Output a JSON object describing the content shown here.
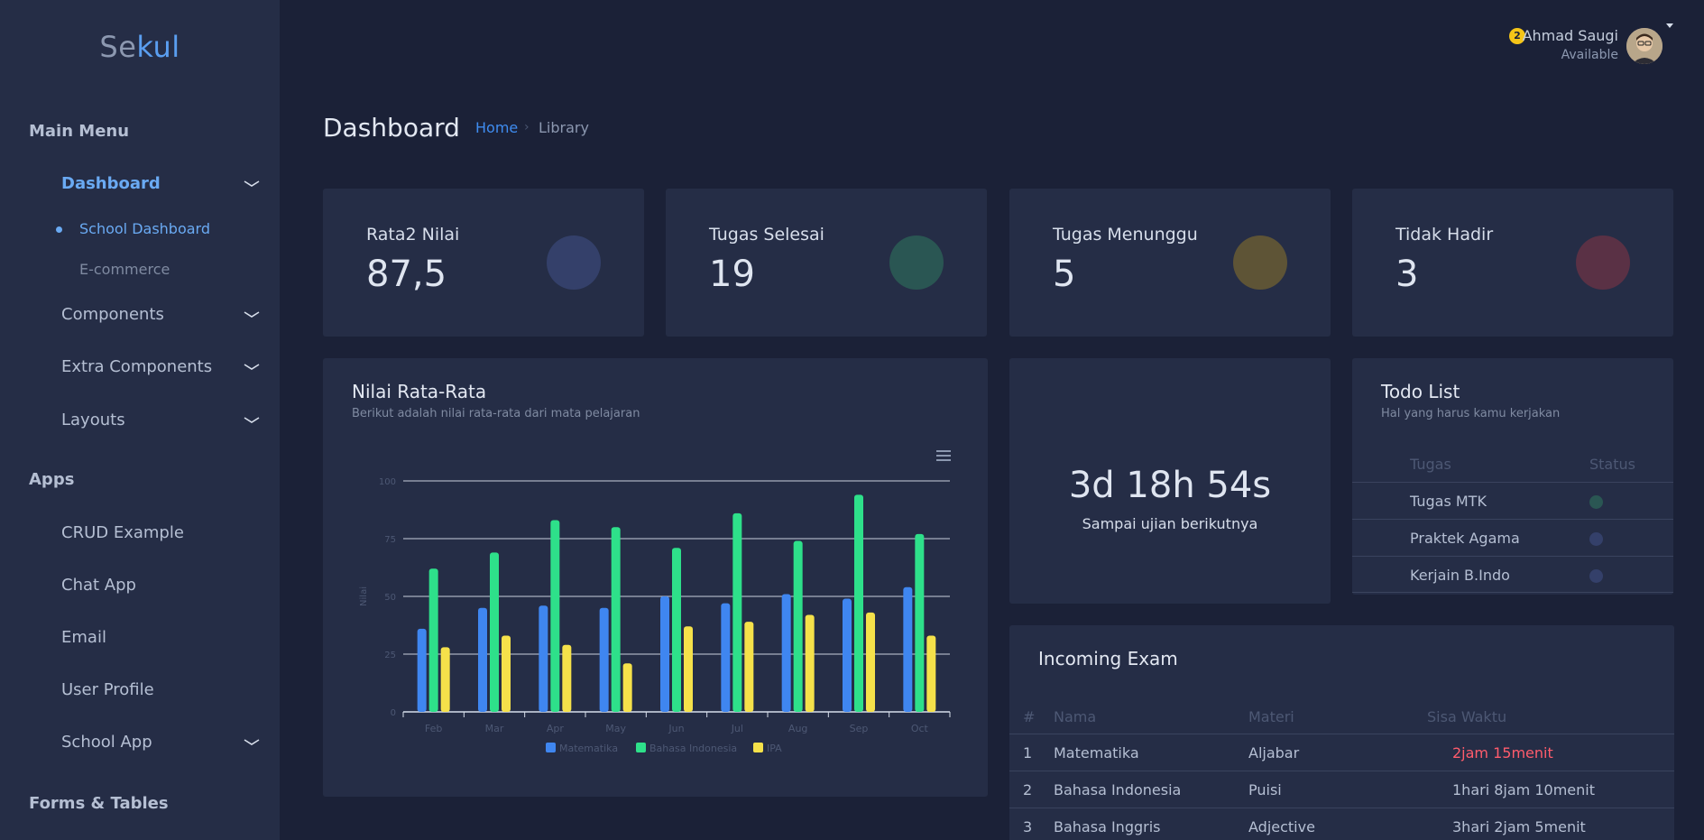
{
  "brand": {
    "part1": "Se",
    "part2": "kul"
  },
  "sidebar": {
    "main_menu": "Main Menu",
    "dashboard": "Dashboard",
    "school_dashboard": "School Dashboard",
    "ecommerce": "E-commerce",
    "components": "Components",
    "extra_components": "Extra Components",
    "layouts": "Layouts",
    "apps": "Apps",
    "crud": "CRUD Example",
    "chat": "Chat App",
    "email": "Email",
    "user_profile": "User Profile",
    "school_app": "School App",
    "forms_tables": "Forms & Tables"
  },
  "header": {
    "notification_count": "2",
    "user_name": "Ahmad Saugi",
    "user_status": "Available"
  },
  "page": {
    "title": "Dashboard",
    "breadcrumb_home": "Home",
    "breadcrumb_sep": "›",
    "breadcrumb_current": "Library"
  },
  "stats": [
    {
      "label": "Rata2 Nilai",
      "value": "87,5",
      "color": "#34406a"
    },
    {
      "label": "Tugas Selesai",
      "value": "19",
      "color": "#2a5653"
    },
    {
      "label": "Tugas Menunggu",
      "value": "5",
      "color": "#5e5436"
    },
    {
      "label": "Tidak Hadir",
      "value": "3",
      "color": "#5a3145"
    }
  ],
  "chart_card": {
    "title": "Nilai Rata-Rata",
    "subtitle": "Berikut adalah nilai rata-rata dari mata pelajaran"
  },
  "chart_data": {
    "type": "bar",
    "categories": [
      "Feb",
      "Mar",
      "Apr",
      "May",
      "Jun",
      "Jul",
      "Aug",
      "Sep",
      "Oct"
    ],
    "series": [
      {
        "name": "Matematika",
        "color": "#3f86f0",
        "values": [
          36,
          45,
          46,
          45,
          50,
          47,
          51,
          49,
          54
        ]
      },
      {
        "name": "Bahasa Indonesia",
        "color": "#2ee08a",
        "values": [
          62,
          69,
          83,
          80,
          71,
          86,
          74,
          94,
          77
        ]
      },
      {
        "name": "IPA",
        "color": "#f5e14a",
        "values": [
          28,
          33,
          29,
          21,
          37,
          39,
          42,
          43,
          33
        ]
      }
    ],
    "ylabel": "Nilai",
    "ylim": [
      0,
      100
    ],
    "yticks": [
      0,
      25,
      50,
      75,
      100
    ],
    "grid": true,
    "legend": "bottom"
  },
  "countdown": {
    "value": "3d 18h 54s",
    "label": "Sampai ujian berikutnya"
  },
  "todo": {
    "title": "Todo List",
    "subtitle": "Hal yang harus kamu kerjakan",
    "col_task": "Tugas",
    "col_status": "Status",
    "items": [
      {
        "task": "Tugas MTK",
        "status_color": "#2a5653"
      },
      {
        "task": "Praktek Agama",
        "status_color": "#34406a"
      },
      {
        "task": "Kerjain B.Indo",
        "status_color": "#34406a"
      }
    ]
  },
  "exam": {
    "title": "Incoming Exam",
    "columns": [
      "#",
      "Nama",
      "Materi",
      "Sisa Waktu"
    ],
    "rows": [
      {
        "no": "1",
        "name": "Matematika",
        "topic": "Aljabar",
        "time": "2jam 15menit"
      },
      {
        "no": "2",
        "name": "Bahasa Indonesia",
        "topic": "Puisi",
        "time": "1hari 8jam 10menit"
      },
      {
        "no": "3",
        "name": "Bahasa Inggris",
        "topic": "Adjective",
        "time": "3hari 2jam 5menit"
      }
    ]
  }
}
